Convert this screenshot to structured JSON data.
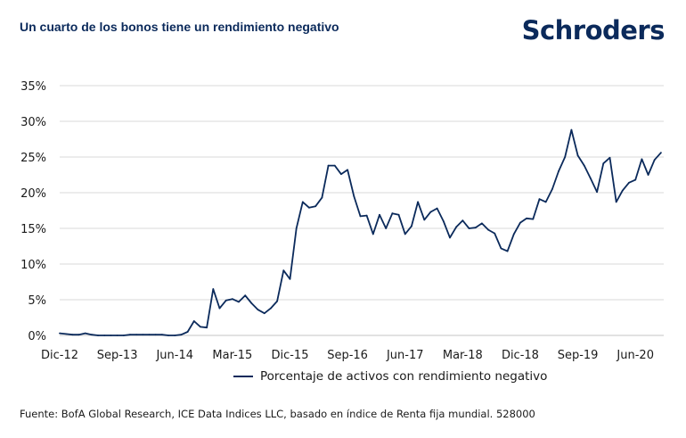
{
  "title": "Un cuarto de los bonos tiene un rendimiento negativo",
  "logo": "Schroders",
  "footnote": "Fuente: BofA Global Research, ICE Data Indices LLC, basado en índice de Renta fija mundial. 528000",
  "colors": {
    "line": "#0b2a5b",
    "grid": "#d9d9d9",
    "title": "#0b2a5b"
  },
  "chart_data": {
    "type": "line",
    "title": "Un cuarto de los bonos tiene un rendimiento negativo",
    "xlabel": "",
    "ylabel": "",
    "ylim": [
      0,
      35
    ],
    "yticks": [
      0,
      5,
      10,
      15,
      20,
      25,
      30,
      35
    ],
    "ytick_labels": [
      "0%",
      "5%",
      "10%",
      "15%",
      "20%",
      "25%",
      "30%",
      "35%"
    ],
    "xtick_labels": [
      "Dic-12",
      "Sep-13",
      "Jun-14",
      "Mar-15",
      "Dic-15",
      "Sep-16",
      "Jun-17",
      "Mar-18",
      "Dic-18",
      "Sep-19",
      "Jun-20"
    ],
    "xtick_dates": [
      "2012-12",
      "2013-09",
      "2014-06",
      "2015-03",
      "2015-12",
      "2016-09",
      "2017-06",
      "2018-03",
      "2018-12",
      "2019-09",
      "2020-06"
    ],
    "grid": true,
    "legend_position": "bottom",
    "series": [
      {
        "name": "Porcentaje de activos con rendimiento negativo",
        "x": [
          "2012-12",
          "2013-01",
          "2013-02",
          "2013-03",
          "2013-04",
          "2013-05",
          "2013-06",
          "2013-07",
          "2013-08",
          "2013-09",
          "2013-10",
          "2013-11",
          "2013-12",
          "2014-01",
          "2014-02",
          "2014-03",
          "2014-04",
          "2014-05",
          "2014-06",
          "2014-07",
          "2014-08",
          "2014-09",
          "2014-10",
          "2014-11",
          "2014-12",
          "2015-01",
          "2015-02",
          "2015-03",
          "2015-04",
          "2015-05",
          "2015-06",
          "2015-07",
          "2015-08",
          "2015-09",
          "2015-10",
          "2015-11",
          "2015-12",
          "2016-01",
          "2016-02",
          "2016-03",
          "2016-04",
          "2016-05",
          "2016-06",
          "2016-07",
          "2016-08",
          "2016-09",
          "2016-10",
          "2016-11",
          "2016-12",
          "2017-01",
          "2017-02",
          "2017-03",
          "2017-04",
          "2017-05",
          "2017-06",
          "2017-07",
          "2017-08",
          "2017-09",
          "2017-10",
          "2017-11",
          "2017-12",
          "2018-01",
          "2018-02",
          "2018-03",
          "2018-04",
          "2018-05",
          "2018-06",
          "2018-07",
          "2018-08",
          "2018-09",
          "2018-10",
          "2018-11",
          "2018-12",
          "2019-01",
          "2019-02",
          "2019-03",
          "2019-04",
          "2019-05",
          "2019-06",
          "2019-07",
          "2019-08",
          "2019-09",
          "2019-10",
          "2019-11",
          "2019-12",
          "2020-01",
          "2020-02",
          "2020-03",
          "2020-04",
          "2020-05",
          "2020-06",
          "2020-07",
          "2020-08",
          "2020-09",
          "2020-10"
        ],
        "values": [
          0.3,
          0.2,
          0.1,
          0.1,
          0.3,
          0.1,
          0.0,
          0.0,
          0.0,
          0.0,
          0.0,
          0.1,
          0.1,
          0.1,
          0.1,
          0.1,
          0.1,
          0.0,
          0.0,
          0.1,
          0.5,
          2.0,
          1.2,
          1.1,
          6.5,
          3.8,
          4.9,
          5.1,
          4.7,
          5.6,
          4.5,
          3.6,
          3.1,
          3.8,
          4.8,
          9.1,
          7.9,
          15.0,
          18.7,
          17.9,
          18.1,
          19.3,
          23.8,
          23.8,
          22.6,
          23.2,
          19.5,
          16.7,
          16.8,
          14.2,
          16.9,
          15.0,
          17.1,
          16.9,
          14.2,
          15.3,
          18.7,
          16.2,
          17.3,
          17.8,
          16.0,
          13.7,
          15.2,
          16.1,
          15.0,
          15.1,
          15.7,
          14.8,
          14.3,
          12.2,
          11.8,
          14.2,
          15.8,
          16.4,
          16.3,
          19.1,
          18.7,
          20.5,
          23.0,
          25.0,
          28.8,
          25.2,
          23.8,
          22.0,
          20.1,
          24.1,
          24.9,
          18.7,
          20.3,
          21.4,
          21.8,
          24.7,
          22.5,
          24.6,
          25.6
        ]
      }
    ]
  }
}
